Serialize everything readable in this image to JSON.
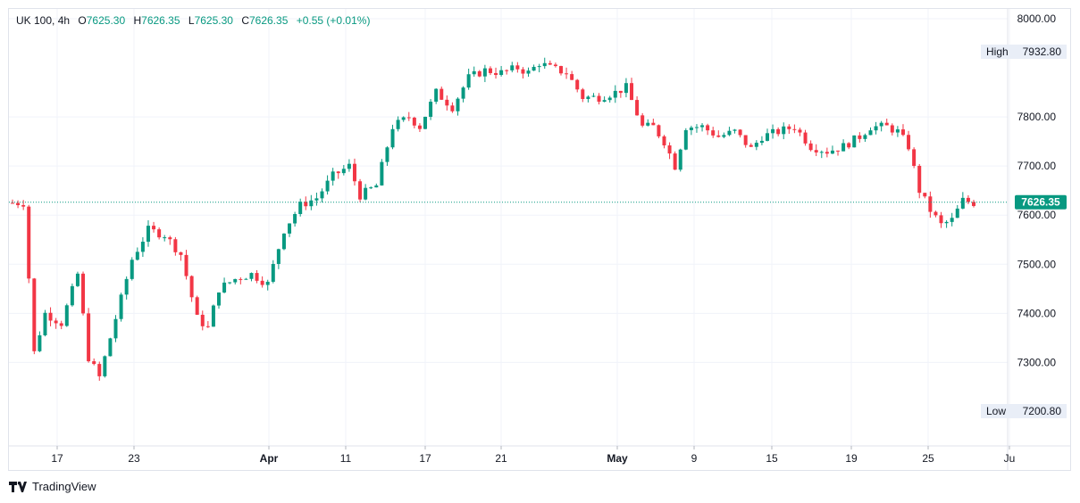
{
  "legend": {
    "symbol": "UK 100",
    "interval": "4h",
    "o_label": "O",
    "open": "7625.30",
    "h_label": "H",
    "high": "7626.35",
    "l_label": "L",
    "low": "7625.30",
    "c_label": "C",
    "close": "7626.35",
    "change": "+0.55 (+0.01%)"
  },
  "brand": {
    "name": "TradingView"
  },
  "colors": {
    "up": "#089981",
    "down": "#f23645",
    "grid": "#f0f3fa",
    "axis_text": "#131722",
    "marker_bg": "#e9eef7",
    "price_tag": "#089981"
  },
  "chart_data": {
    "type": "candlestick",
    "y_ticks": [
      "7300.00",
      "7400.00",
      "7500.00",
      "7600.00",
      "7700.00",
      "7800.00",
      "8000.00"
    ],
    "y_tick_values": [
      7300,
      7400,
      7500,
      7600,
      7700,
      7800,
      8000
    ],
    "hidden_ticks_note": "",
    "x_ticks": [
      "17",
      "23",
      "Apr",
      "11",
      "17",
      "21",
      "May",
      "9",
      "15",
      "19",
      "25",
      "Ju"
    ],
    "ylim": [
      7130,
      8020
    ],
    "high_marker": {
      "label": "High",
      "value": "7932.80"
    },
    "low_marker": {
      "label": "Low",
      "value": "7200.80"
    },
    "last_price": {
      "value": "7626.35"
    },
    "anchors": [
      [
        0,
        7625
      ],
      [
        2,
        7625
      ],
      [
        4,
        7320
      ],
      [
        6,
        7400
      ],
      [
        9,
        7380
      ],
      [
        12,
        7480
      ],
      [
        14,
        7310
      ],
      [
        16,
        7270
      ],
      [
        19,
        7390
      ],
      [
        22,
        7510
      ],
      [
        25,
        7570
      ],
      [
        28,
        7560
      ],
      [
        31,
        7520
      ],
      [
        34,
        7390
      ],
      [
        36,
        7370
      ],
      [
        38,
        7450
      ],
      [
        41,
        7470
      ],
      [
        44,
        7480
      ],
      [
        47,
        7460
      ],
      [
        50,
        7570
      ],
      [
        53,
        7620
      ],
      [
        56,
        7635
      ],
      [
        59,
        7680
      ],
      [
        62,
        7700
      ],
      [
        64,
        7640
      ],
      [
        67,
        7660
      ],
      [
        70,
        7780
      ],
      [
        73,
        7800
      ],
      [
        75,
        7780
      ],
      [
        78,
        7850
      ],
      [
        81,
        7820
      ],
      [
        84,
        7880
      ],
      [
        87,
        7895
      ],
      [
        90,
        7890
      ],
      [
        93,
        7900
      ],
      [
        95,
        7890
      ],
      [
        97,
        7910
      ],
      [
        99,
        7900
      ],
      [
        102,
        7890
      ],
      [
        105,
        7840
      ],
      [
        108,
        7840
      ],
      [
        111,
        7850
      ],
      [
        113,
        7860
      ],
      [
        116,
        7780
      ],
      [
        118,
        7780
      ],
      [
        120,
        7750
      ],
      [
        122,
        7700
      ],
      [
        124,
        7780
      ],
      [
        127,
        7780
      ],
      [
        130,
        7760
      ],
      [
        133,
        7770
      ],
      [
        136,
        7735
      ],
      [
        138,
        7760
      ],
      [
        141,
        7770
      ],
      [
        144,
        7780
      ],
      [
        147,
        7740
      ],
      [
        150,
        7730
      ],
      [
        153,
        7740
      ],
      [
        156,
        7760
      ],
      [
        158,
        7780
      ],
      [
        161,
        7780
      ],
      [
        163,
        7770
      ],
      [
        165,
        7740
      ],
      [
        167,
        7650
      ],
      [
        169,
        7610
      ],
      [
        171,
        7580
      ],
      [
        173,
        7590
      ],
      [
        175,
        7630
      ],
      [
        177,
        7625
      ]
    ]
  }
}
